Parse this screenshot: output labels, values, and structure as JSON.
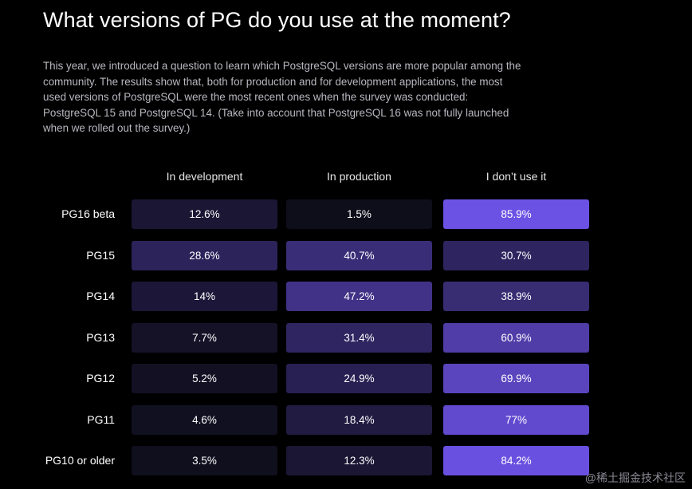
{
  "header": {
    "title": "What versions of PG do you use at the moment?",
    "description": "This year, we introduced a question to learn which PostgreSQL versions are more popular among the community. The results show that, both for production and for development applications, the most used versions of PostgreSQL were the most recent ones when the survey was conducted: PostgreSQL 15 and PostgreSQL 14. (Take into account that PostgreSQL 16 was not fully launched when we rolled out the survey.)"
  },
  "watermark": "@稀土掘金技术社区",
  "colors": {
    "low": "#0c0c16",
    "high": "#7155ee"
  },
  "chart_data": {
    "type": "heatmap",
    "columns": [
      "In development",
      "In production",
      "I don’t use it"
    ],
    "rows": [
      {
        "label": "PG16 beta",
        "values": [
          12.6,
          1.5,
          85.9
        ],
        "display": [
          "12.6%",
          "1.5%",
          "85.9%"
        ]
      },
      {
        "label": "PG15",
        "values": [
          28.6,
          40.7,
          30.7
        ],
        "display": [
          "28.6%",
          "40.7%",
          "30.7%"
        ]
      },
      {
        "label": "PG14",
        "values": [
          14,
          47.2,
          38.9
        ],
        "display": [
          "14%",
          "47.2%",
          "38.9%"
        ]
      },
      {
        "label": "PG13",
        "values": [
          7.7,
          31.4,
          60.9
        ],
        "display": [
          "7.7%",
          "31.4%",
          "60.9%"
        ]
      },
      {
        "label": "PG12",
        "values": [
          5.2,
          24.9,
          69.9
        ],
        "display": [
          "5.2%",
          "24.9%",
          "69.9%"
        ]
      },
      {
        "label": "PG11",
        "values": [
          4.6,
          18.4,
          77
        ],
        "display": [
          "4.6%",
          "18.4%",
          "77%"
        ]
      },
      {
        "label": "PG10 or older",
        "values": [
          3.5,
          12.3,
          84.2
        ],
        "display": [
          "3.5%",
          "12.3%",
          "84.2%"
        ]
      }
    ]
  }
}
